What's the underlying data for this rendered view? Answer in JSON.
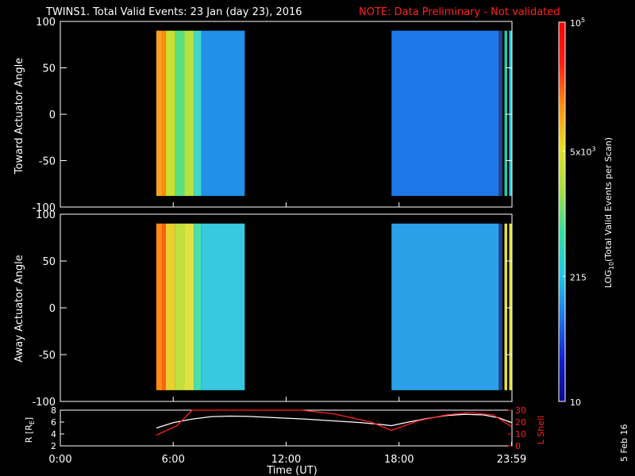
{
  "title": "TWINS1. Total Valid Events: 23 Jan (day  23), 2016",
  "note": "NOTE: Data Preliminary - Not validated",
  "date_stamp": "5 Feb 16",
  "colors": {
    "background": "#000000",
    "note": "#ff2020",
    "r_line": "#ffffff",
    "lshell_line": "#ff2020"
  },
  "chart_data": [
    {
      "type": "heatmap",
      "ylabel": "Toward Actuator Angle",
      "ylim": [
        -100,
        100
      ],
      "yticks": [
        "100",
        "50",
        "0",
        "-50",
        "-100"
      ],
      "yticks_values": [
        100,
        50,
        0,
        -50,
        -100
      ],
      "data_y_range": [
        -88,
        90
      ],
      "segments": [
        {
          "start_hour": 5.1,
          "end_hour": 9.8,
          "layers": [
            {
              "start_hour": 5.1,
              "end_hour": 5.4,
              "color": "#f5a020"
            },
            {
              "start_hour": 5.4,
              "end_hour": 5.6,
              "color": "#ff8c10"
            },
            {
              "start_hour": 5.6,
              "end_hour": 6.1,
              "color": "#c8e030"
            },
            {
              "start_hour": 6.1,
              "end_hour": 6.6,
              "color": "#58e080"
            },
            {
              "start_hour": 6.6,
              "end_hour": 7.1,
              "color": "#b8e040"
            },
            {
              "start_hour": 7.1,
              "end_hour": 7.5,
              "color": "#40d8c8"
            },
            {
              "start_hour": 7.5,
              "end_hour": 9.8,
              "color": "#2090e8"
            }
          ]
        },
        {
          "start_hour": 17.6,
          "end_hour": 23.3,
          "layers": [
            {
              "start_hour": 17.6,
              "end_hour": 23.3,
              "color": "#1e78e8"
            }
          ]
        },
        {
          "start_hour": 23.3,
          "end_hour": 23.99,
          "layers": [
            {
              "start_hour": 23.3,
              "end_hour": 23.5,
              "color": "#24408c"
            },
            {
              "start_hour": 23.5,
              "end_hour": 23.6,
              "color": "#000000"
            },
            {
              "start_hour": 23.6,
              "end_hour": 23.75,
              "color": "#20d0a0"
            },
            {
              "start_hour": 23.75,
              "end_hour": 23.85,
              "color": "#000000"
            },
            {
              "start_hour": 23.85,
              "end_hour": 23.99,
              "color": "#30c8e0"
            }
          ]
        }
      ]
    },
    {
      "type": "heatmap",
      "ylabel": "Away Actuator Angle",
      "ylim": [
        -100,
        100
      ],
      "yticks": [
        "100",
        "50",
        "0",
        "-50",
        "-100"
      ],
      "yticks_values": [
        100,
        50,
        0,
        -50,
        -100
      ],
      "data_y_range": [
        -88,
        90
      ],
      "segments": [
        {
          "start_hour": 5.1,
          "end_hour": 9.8,
          "layers": [
            {
              "start_hour": 5.1,
              "end_hour": 5.4,
              "color": "#ff8c10"
            },
            {
              "start_hour": 5.4,
              "end_hour": 5.6,
              "color": "#ff6010"
            },
            {
              "start_hour": 5.6,
              "end_hour": 6.1,
              "color": "#e8d030"
            },
            {
              "start_hour": 6.1,
              "end_hour": 6.6,
              "color": "#c0e040"
            },
            {
              "start_hour": 6.6,
              "end_hour": 7.1,
              "color": "#e0e040"
            },
            {
              "start_hour": 7.1,
              "end_hour": 7.5,
              "color": "#48e0b0"
            },
            {
              "start_hour": 7.5,
              "end_hour": 9.8,
              "color": "#38c8e0"
            }
          ]
        },
        {
          "start_hour": 17.6,
          "end_hour": 23.3,
          "layers": [
            {
              "start_hour": 17.6,
              "end_hour": 23.3,
              "color": "#2aa0e8"
            }
          ]
        },
        {
          "start_hour": 23.3,
          "end_hour": 23.99,
          "layers": [
            {
              "start_hour": 23.3,
              "end_hour": 23.5,
              "color": "#24408c"
            },
            {
              "start_hour": 23.5,
              "end_hour": 23.6,
              "color": "#000000"
            },
            {
              "start_hour": 23.6,
              "end_hour": 23.75,
              "color": "#e8e040"
            },
            {
              "start_hour": 23.75,
              "end_hour": 23.85,
              "color": "#000000"
            },
            {
              "start_hour": 23.85,
              "end_hour": 23.99,
              "color": "#d8e040"
            }
          ]
        }
      ]
    },
    {
      "type": "line",
      "xlabel": "Time (UT)",
      "xticks": [
        "0:00",
        "6:00",
        "12:00",
        "18:00",
        "23:59"
      ],
      "xticks_values": [
        0,
        6,
        12,
        18,
        23.98
      ],
      "xlim": [
        0,
        24
      ],
      "ylabel_left": "R [R",
      "ylabel_left_sub": "E",
      "ylabel_left_end": "]",
      "ylim_left": [
        2,
        8
      ],
      "yticks_left": [
        "2",
        "4",
        "6",
        "8"
      ],
      "yticks_left_values": [
        2,
        4,
        6,
        8
      ],
      "ylabel_right": "L Shell",
      "ylim_right": [
        0,
        30
      ],
      "yticks_right": [
        "0",
        "10",
        "20",
        "30"
      ],
      "yticks_right_values": [
        0,
        10,
        20,
        30
      ],
      "series": [
        {
          "axis": "left",
          "color": "#ffffff",
          "x": [
            5.1,
            6.0,
            7.0,
            8.0,
            9.0,
            10.0,
            11.0,
            12.0,
            13.0,
            14.0,
            15.0,
            16.0,
            17.0,
            17.6,
            18.5,
            19.5,
            20.5,
            21.5,
            22.5,
            23.3,
            23.99
          ],
          "y": [
            5.0,
            5.9,
            6.5,
            6.9,
            7.0,
            6.95,
            6.8,
            6.65,
            6.5,
            6.3,
            6.1,
            5.9,
            5.6,
            5.4,
            6.0,
            6.6,
            7.1,
            7.3,
            7.2,
            6.7,
            5.9
          ]
        },
        {
          "axis": "right",
          "color": "#ff2020",
          "x": [
            5.1,
            6.2,
            7.0,
            12.8,
            14.5,
            16.5,
            17.6,
            19.0,
            20.5,
            21.7,
            23.0,
            23.99
          ],
          "y": [
            9,
            17,
            30,
            30,
            27,
            20,
            13,
            21,
            26,
            28,
            26,
            16
          ]
        }
      ]
    }
  ],
  "colorbar": {
    "label": "LOG",
    "label_sub": "10",
    "label_rest": "(Total Valid  Events per Scan)",
    "tick_labels": [
      {
        "base": "10",
        "sup": "5",
        "pos": 1.0
      },
      {
        "base": "5x10",
        "sup": "3",
        "pos": 0.66
      },
      {
        "base": "215",
        "sup": "",
        "pos": 0.33
      },
      {
        "base": "10",
        "sup": "",
        "pos": 0.0
      }
    ],
    "gradient_stops": [
      "#0a0a8c",
      "#1020d0",
      "#1e78e8",
      "#20c8e8",
      "#30e0a0",
      "#a0e040",
      "#e8e020",
      "#ff9010",
      "#ff2010",
      "#ff0000"
    ]
  }
}
